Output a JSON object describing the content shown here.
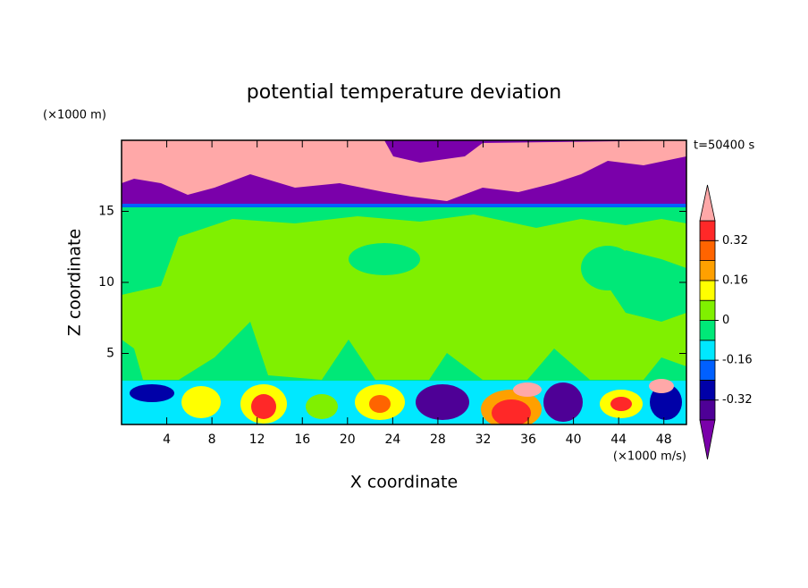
{
  "chart_data": {
    "type": "contour",
    "title": "potential temperature deviation",
    "x_label": "X coordinate",
    "y_label": "Z coordinate",
    "x_units": "(×1000 m/s)",
    "y_units": "(×1000 m)",
    "annotation": "t=50400 s",
    "xlim": [
      0,
      50
    ],
    "xticks": [
      4,
      8,
      12,
      16,
      20,
      24,
      28,
      32,
      36,
      40,
      44,
      48
    ],
    "ylim": [
      0,
      20
    ],
    "yticks": [
      5,
      10,
      15
    ],
    "colorbar": {
      "levels": [
        -0.4,
        -0.32,
        -0.24,
        -0.16,
        -0.08,
        0,
        0.08,
        0.16,
        0.24,
        0.32,
        0.4
      ],
      "colors": [
        "#7a00aa",
        "#4e0096",
        "#0000a8",
        "#0060ff",
        "#00e8ff",
        "#00e878",
        "#80f000",
        "#ffff00",
        "#ffa000",
        "#ff6400",
        "#ff2828",
        "#ffa8a8"
      ],
      "ticks": [
        -0.32,
        -0.16,
        0,
        0.16,
        0.32
      ]
    }
  }
}
